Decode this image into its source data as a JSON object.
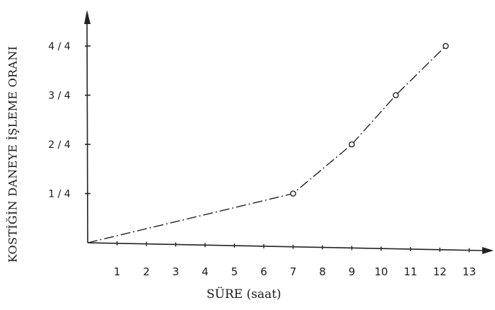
{
  "chart_data": {
    "type": "line",
    "title": "",
    "xlabel": "SÜRE (saat)",
    "ylabel": "KOSTİĞİN DANEYE İŞLEME ORANI",
    "x_ticks": [
      "1",
      "2",
      "3",
      "4",
      "5",
      "6",
      "7",
      "8",
      "9",
      "10",
      "11",
      "12",
      "13"
    ],
    "y_ticks": [
      {
        "value": 0.25,
        "label": "1 / 4"
      },
      {
        "value": 0.5,
        "label": "2 / 4"
      },
      {
        "value": 0.75,
        "label": "3 / 4"
      },
      {
        "value": 1.0,
        "label": "4 / 4"
      }
    ],
    "xlim": [
      0,
      14
    ],
    "ylim": [
      0,
      1.1
    ],
    "grid": false,
    "series": [
      {
        "line_style": "dash-dot",
        "points": [
          {
            "x": 0,
            "y": 0,
            "marker": false
          },
          {
            "x": 7,
            "y": 0.25,
            "marker": true
          },
          {
            "x": 9,
            "y": 0.5,
            "marker": true
          },
          {
            "x": 10.5,
            "y": 0.75,
            "marker": true
          },
          {
            "x": 12.2,
            "y": 1.0,
            "marker": true
          }
        ]
      }
    ]
  }
}
